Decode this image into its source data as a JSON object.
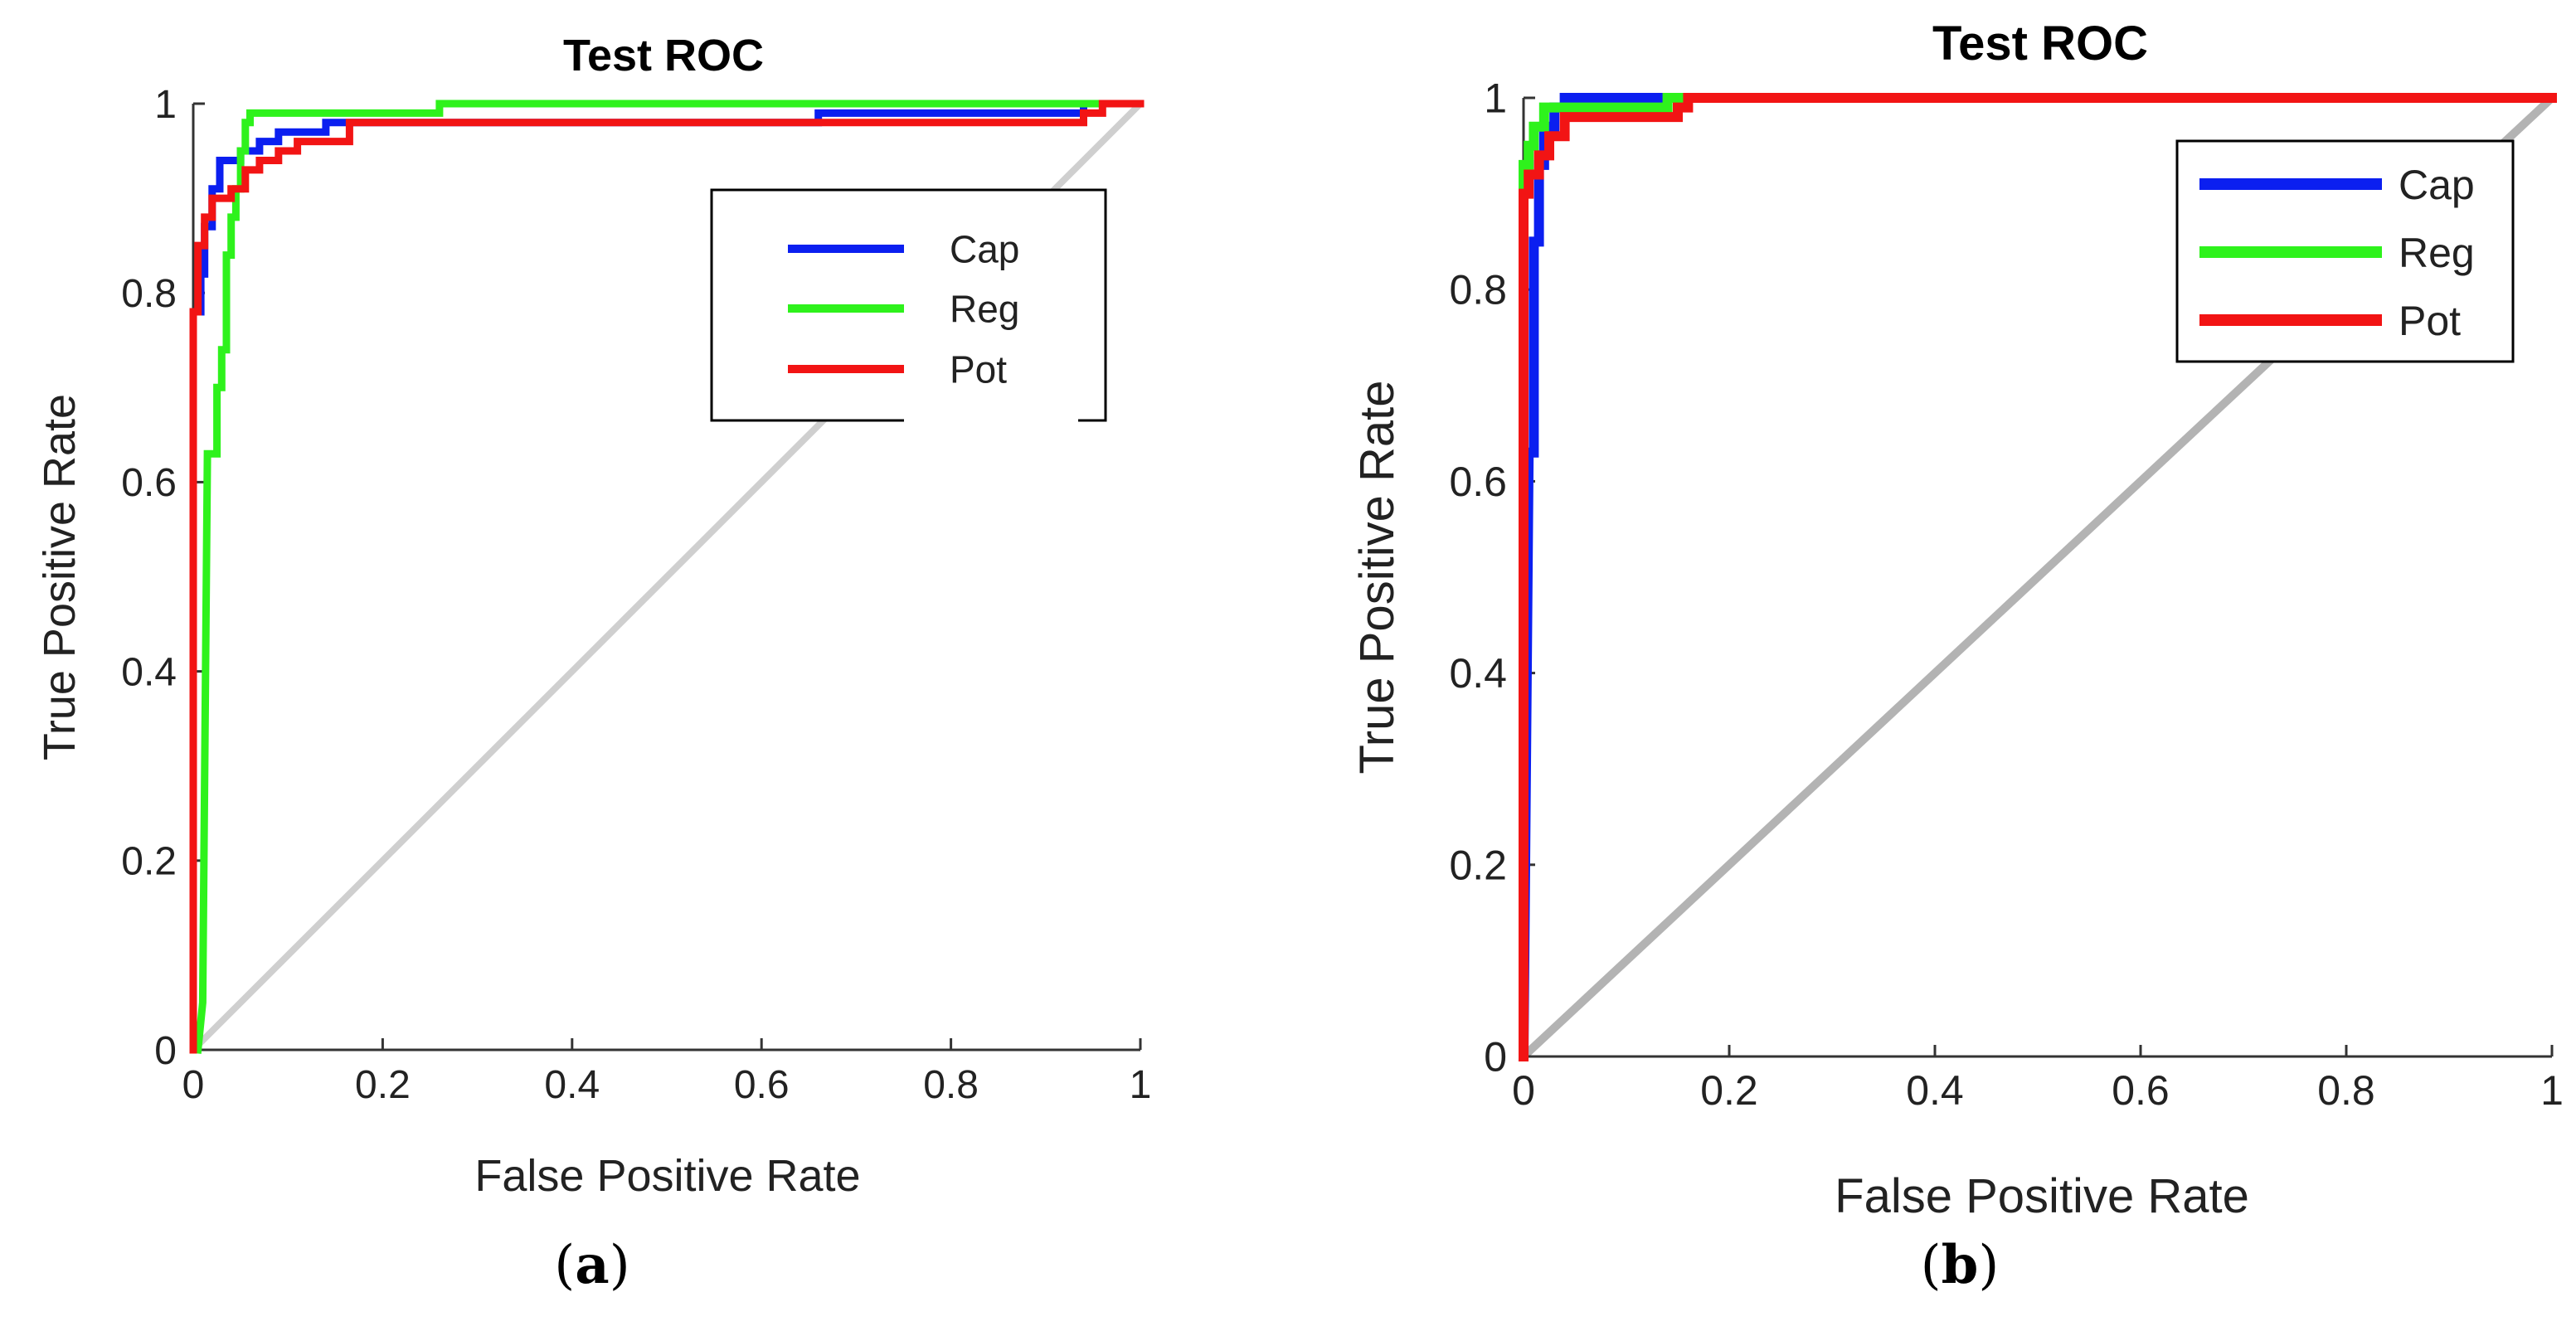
{
  "figure": {
    "caption_a": "a",
    "caption_b": "b"
  },
  "colors": {
    "Cap": "#0b1ff0",
    "Reg": "#2ef21c",
    "Pot": "#f21414",
    "diagonal_a": "#cfcfcf",
    "diagonal_b": "#b3b3b3"
  },
  "chart_data": [
    {
      "type": "line",
      "panel": "a",
      "title": "Test ROC",
      "xlabel": "False Positive Rate",
      "ylabel": "True Positive Rate",
      "xlim": [
        0,
        1
      ],
      "ylim": [
        0,
        1
      ],
      "xticks": [
        "0",
        "0.2",
        "0.4",
        "0.6",
        "0.8",
        "1"
      ],
      "yticks": [
        "0",
        "0.2",
        "0.4",
        "0.6",
        "0.8",
        "1"
      ],
      "grid": false,
      "legend_position": "top-right",
      "legend": [
        "Cap",
        "Reg",
        "Pot"
      ],
      "diagonal": true,
      "series": [
        {
          "name": "Cap",
          "points": [
            [
              0,
              0
            ],
            [
              0,
              0.78
            ],
            [
              0.008,
              0.78
            ],
            [
              0.008,
              0.82
            ],
            [
              0.012,
              0.82
            ],
            [
              0.012,
              0.87
            ],
            [
              0.02,
              0.87
            ],
            [
              0.02,
              0.91
            ],
            [
              0.028,
              0.91
            ],
            [
              0.028,
              0.94
            ],
            [
              0.05,
              0.94
            ],
            [
              0.05,
              0.95
            ],
            [
              0.07,
              0.95
            ],
            [
              0.07,
              0.96
            ],
            [
              0.09,
              0.96
            ],
            [
              0.09,
              0.97
            ],
            [
              0.14,
              0.97
            ],
            [
              0.14,
              0.98
            ],
            [
              0.66,
              0.98
            ],
            [
              0.66,
              0.99
            ],
            [
              0.94,
              0.99
            ],
            [
              0.94,
              1.0
            ],
            [
              1.0,
              1.0
            ]
          ]
        },
        {
          "name": "Reg",
          "points": [
            [
              0.005,
              0
            ],
            [
              0.01,
              0.05
            ],
            [
              0.015,
              0.63
            ],
            [
              0.025,
              0.63
            ],
            [
              0.025,
              0.7
            ],
            [
              0.03,
              0.7
            ],
            [
              0.03,
              0.74
            ],
            [
              0.035,
              0.74
            ],
            [
              0.035,
              0.84
            ],
            [
              0.04,
              0.84
            ],
            [
              0.04,
              0.88
            ],
            [
              0.045,
              0.88
            ],
            [
              0.045,
              0.91
            ],
            [
              0.05,
              0.91
            ],
            [
              0.05,
              0.95
            ],
            [
              0.055,
              0.95
            ],
            [
              0.055,
              0.98
            ],
            [
              0.06,
              0.98
            ],
            [
              0.06,
              0.99
            ],
            [
              0.26,
              0.99
            ],
            [
              0.26,
              1.0
            ],
            [
              1.0,
              1.0
            ]
          ]
        },
        {
          "name": "Pot",
          "points": [
            [
              0,
              0
            ],
            [
              0,
              0.78
            ],
            [
              0.005,
              0.78
            ],
            [
              0.005,
              0.85
            ],
            [
              0.012,
              0.85
            ],
            [
              0.012,
              0.88
            ],
            [
              0.02,
              0.88
            ],
            [
              0.02,
              0.9
            ],
            [
              0.04,
              0.9
            ],
            [
              0.04,
              0.91
            ],
            [
              0.055,
              0.91
            ],
            [
              0.055,
              0.93
            ],
            [
              0.07,
              0.93
            ],
            [
              0.07,
              0.94
            ],
            [
              0.09,
              0.94
            ],
            [
              0.09,
              0.95
            ],
            [
              0.11,
              0.95
            ],
            [
              0.11,
              0.96
            ],
            [
              0.165,
              0.96
            ],
            [
              0.165,
              0.98
            ],
            [
              0.94,
              0.98
            ],
            [
              0.94,
              0.99
            ],
            [
              0.96,
              0.99
            ],
            [
              0.96,
              1.0
            ],
            [
              1.0,
              1.0
            ]
          ]
        }
      ]
    },
    {
      "type": "line",
      "panel": "b",
      "title": "Test ROC",
      "xlabel": "False Positive Rate",
      "ylabel": "True Positive Rate",
      "xlim": [
        0,
        1
      ],
      "ylim": [
        0,
        1
      ],
      "xticks": [
        "0",
        "0.2",
        "0.4",
        "0.6",
        "0.8",
        "1"
      ],
      "yticks": [
        "0",
        "0.2",
        "0.4",
        "0.6",
        "0.8",
        "1"
      ],
      "grid": false,
      "legend_position": "top-right",
      "legend": [
        "Cap",
        "Reg",
        "Pot"
      ],
      "diagonal": true,
      "series": [
        {
          "name": "Cap",
          "points": [
            [
              0,
              0
            ],
            [
              0.005,
              0.63
            ],
            [
              0.01,
              0.63
            ],
            [
              0.01,
              0.85
            ],
            [
              0.015,
              0.85
            ],
            [
              0.015,
              0.93
            ],
            [
              0.02,
              0.93
            ],
            [
              0.02,
              0.97
            ],
            [
              0.03,
              0.97
            ],
            [
              0.03,
              0.99
            ],
            [
              0.04,
              0.99
            ],
            [
              0.04,
              1.0
            ],
            [
              1.0,
              1.0
            ]
          ]
        },
        {
          "name": "Reg",
          "points": [
            [
              0,
              0
            ],
            [
              0,
              0.93
            ],
            [
              0.005,
              0.93
            ],
            [
              0.005,
              0.95
            ],
            [
              0.01,
              0.95
            ],
            [
              0.01,
              0.97
            ],
            [
              0.02,
              0.97
            ],
            [
              0.02,
              0.99
            ],
            [
              0.14,
              0.99
            ],
            [
              0.14,
              1.0
            ],
            [
              1.0,
              1.0
            ]
          ]
        },
        {
          "name": "Pot",
          "points": [
            [
              0,
              0
            ],
            [
              0,
              0.9
            ],
            [
              0.005,
              0.9
            ],
            [
              0.005,
              0.92
            ],
            [
              0.015,
              0.92
            ],
            [
              0.015,
              0.94
            ],
            [
              0.025,
              0.94
            ],
            [
              0.025,
              0.96
            ],
            [
              0.04,
              0.96
            ],
            [
              0.04,
              0.98
            ],
            [
              0.15,
              0.98
            ],
            [
              0.15,
              0.99
            ],
            [
              0.16,
              0.99
            ],
            [
              0.16,
              1.0
            ],
            [
              1.0,
              1.0
            ]
          ]
        }
      ]
    }
  ]
}
